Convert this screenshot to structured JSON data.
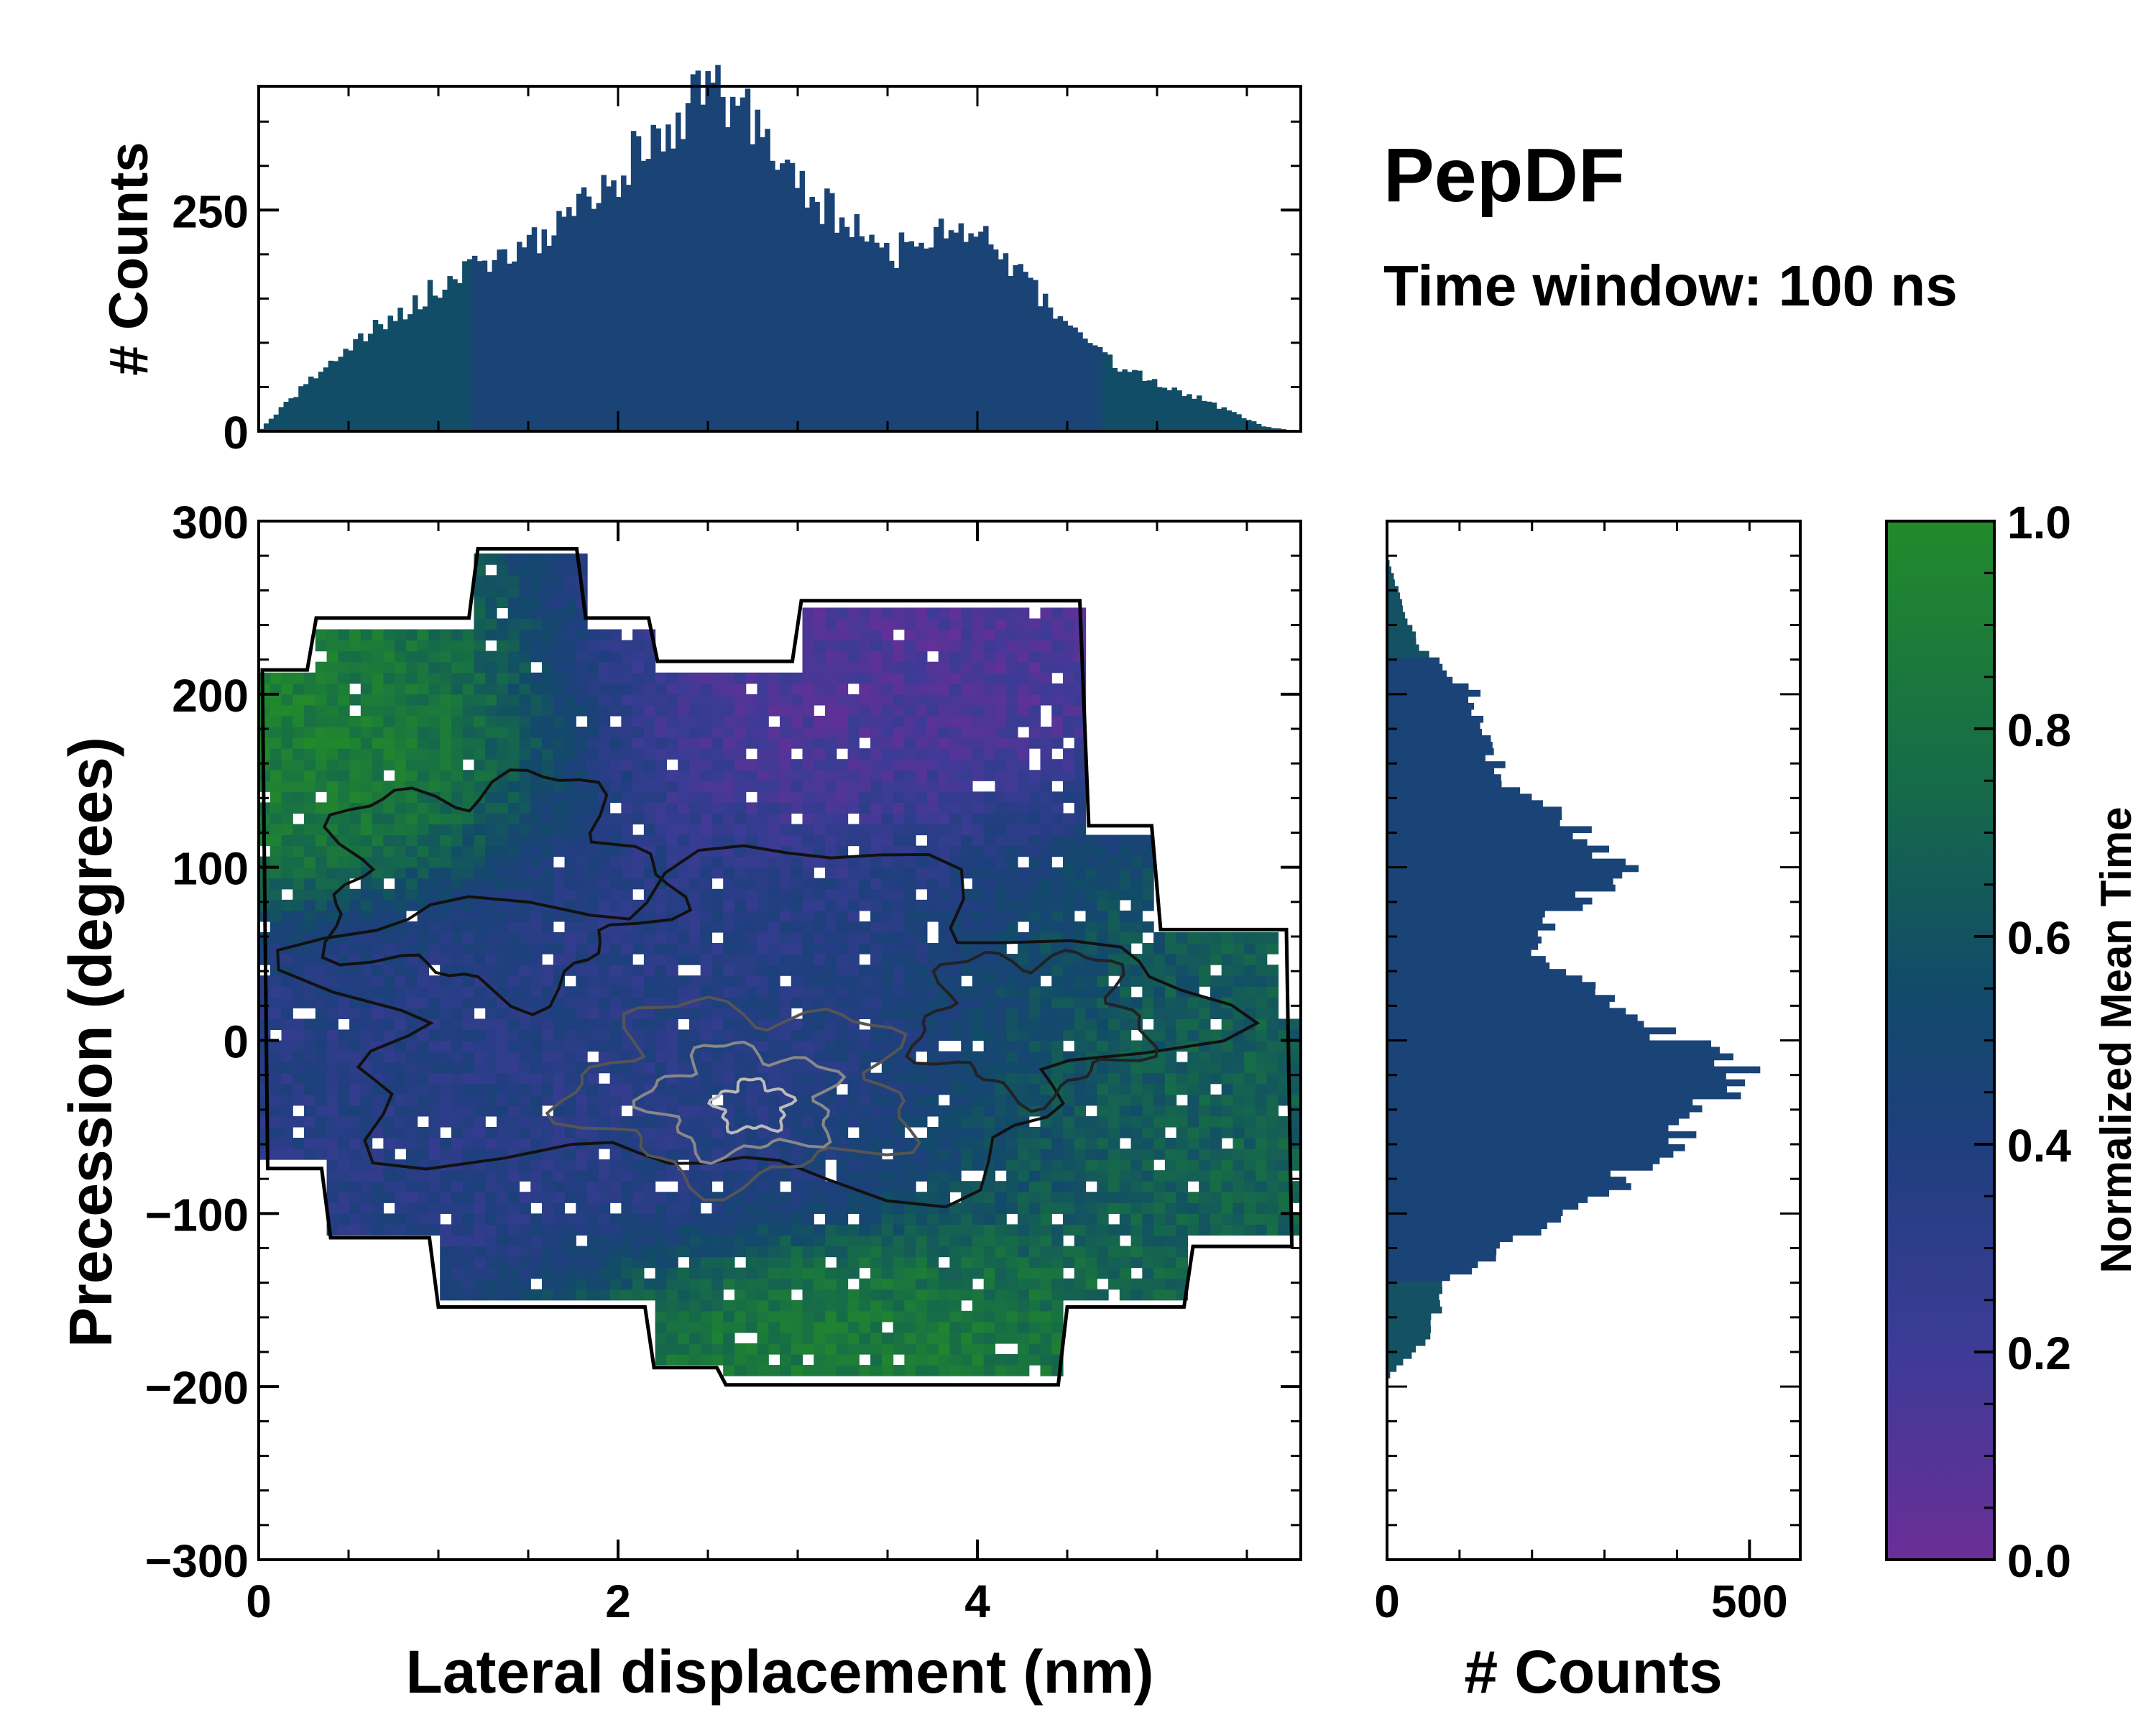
{
  "chart_data": [
    {
      "id": "top_histogram",
      "type": "bar",
      "description_axis": "x",
      "xlim": [
        0,
        5.8
      ],
      "ylim": [
        0,
        390
      ],
      "ylabel": "# Counts",
      "yticks": [
        "0",
        "250"
      ],
      "ytick_values": [
        0,
        250
      ],
      "bins_count": 210,
      "profile_x": [
        0,
        0.4,
        0.9,
        1.2,
        1.6,
        2.2,
        2.5,
        2.7,
        3.1,
        3.5,
        3.8,
        4.1,
        4.5,
        4.8,
        5.2,
        5.6,
        5.8
      ],
      "profile_y": [
        0,
        80,
        150,
        185,
        220,
        330,
        385,
        360,
        260,
        200,
        230,
        210,
        120,
        70,
        40,
        5,
        0
      ]
    },
    {
      "id": "main_heatmap",
      "type": "heatmap",
      "xlabel": "Lateral displacement (nm)",
      "ylabel": "Precession (degrees)",
      "xlim": [
        0,
        5.8
      ],
      "ylim": [
        -300,
        300
      ],
      "xticks": [
        "0",
        "2",
        "4"
      ],
      "xtick_values": [
        0,
        2,
        4
      ],
      "yticks": [
        "300",
        "200",
        "100",
        "0",
        "−100",
        "−200",
        "−300"
      ],
      "ytick_values": [
        300,
        200,
        100,
        0,
        -100,
        -200,
        -300
      ],
      "value_label": "Normalized Mean Time",
      "value_range": [
        0.0,
        1.0
      ],
      "regions": [
        {
          "name": "upper-left",
          "x": [
            0.0,
            1.7
          ],
          "y": [
            130,
            240
          ],
          "value": 0.95
        },
        {
          "name": "top-band",
          "x": [
            1.5,
            4.8
          ],
          "y": [
            130,
            260
          ],
          "value": 0.12
        },
        {
          "name": "center",
          "x": [
            1.2,
            4.5
          ],
          "y": [
            -90,
            120
          ],
          "value": 0.35
        },
        {
          "name": "right",
          "x": [
            3.8,
            5.8
          ],
          "y": [
            -150,
            90
          ],
          "value": 0.75
        },
        {
          "name": "bottom",
          "x": [
            2.5,
            4.5
          ],
          "y": [
            -200,
            -130
          ],
          "value": 0.9
        }
      ]
    },
    {
      "id": "right_histogram",
      "type": "bar",
      "orientation": "horizontal",
      "xlim": [
        0,
        570
      ],
      "ylim": [
        -300,
        300
      ],
      "xlabel": "# Counts",
      "xticks": [
        "0",
        "500"
      ],
      "xtick_values": [
        0,
        500
      ],
      "bins_count": 160,
      "profile_y": [
        -195,
        -170,
        -140,
        -110,
        -80,
        -50,
        -30,
        -20,
        0,
        20,
        40,
        50,
        70,
        90,
        100,
        120,
        150,
        170,
        200,
        230,
        260,
        280
      ],
      "profile_x": [
        0,
        60,
        80,
        200,
        330,
        420,
        480,
        510,
        400,
        330,
        250,
        190,
        220,
        300,
        330,
        270,
        160,
        140,
        120,
        40,
        15,
        0
      ]
    },
    {
      "id": "colorbar",
      "type": "colorbar",
      "label": "Normalized Mean Time",
      "ticks": [
        "0.0",
        "0.2",
        "0.4",
        "0.6",
        "0.8",
        "1.0"
      ],
      "tick_values": [
        0.0,
        0.2,
        0.4,
        0.6,
        0.8,
        1.0
      ],
      "colors": [
        "#6a2e97",
        "#3d3b96",
        "#1f3f7e",
        "#124a6a",
        "#166b48",
        "#228a2b"
      ]
    }
  ],
  "annotation": {
    "title": "PepDF",
    "subtitle": "Time window: 100 ns"
  }
}
